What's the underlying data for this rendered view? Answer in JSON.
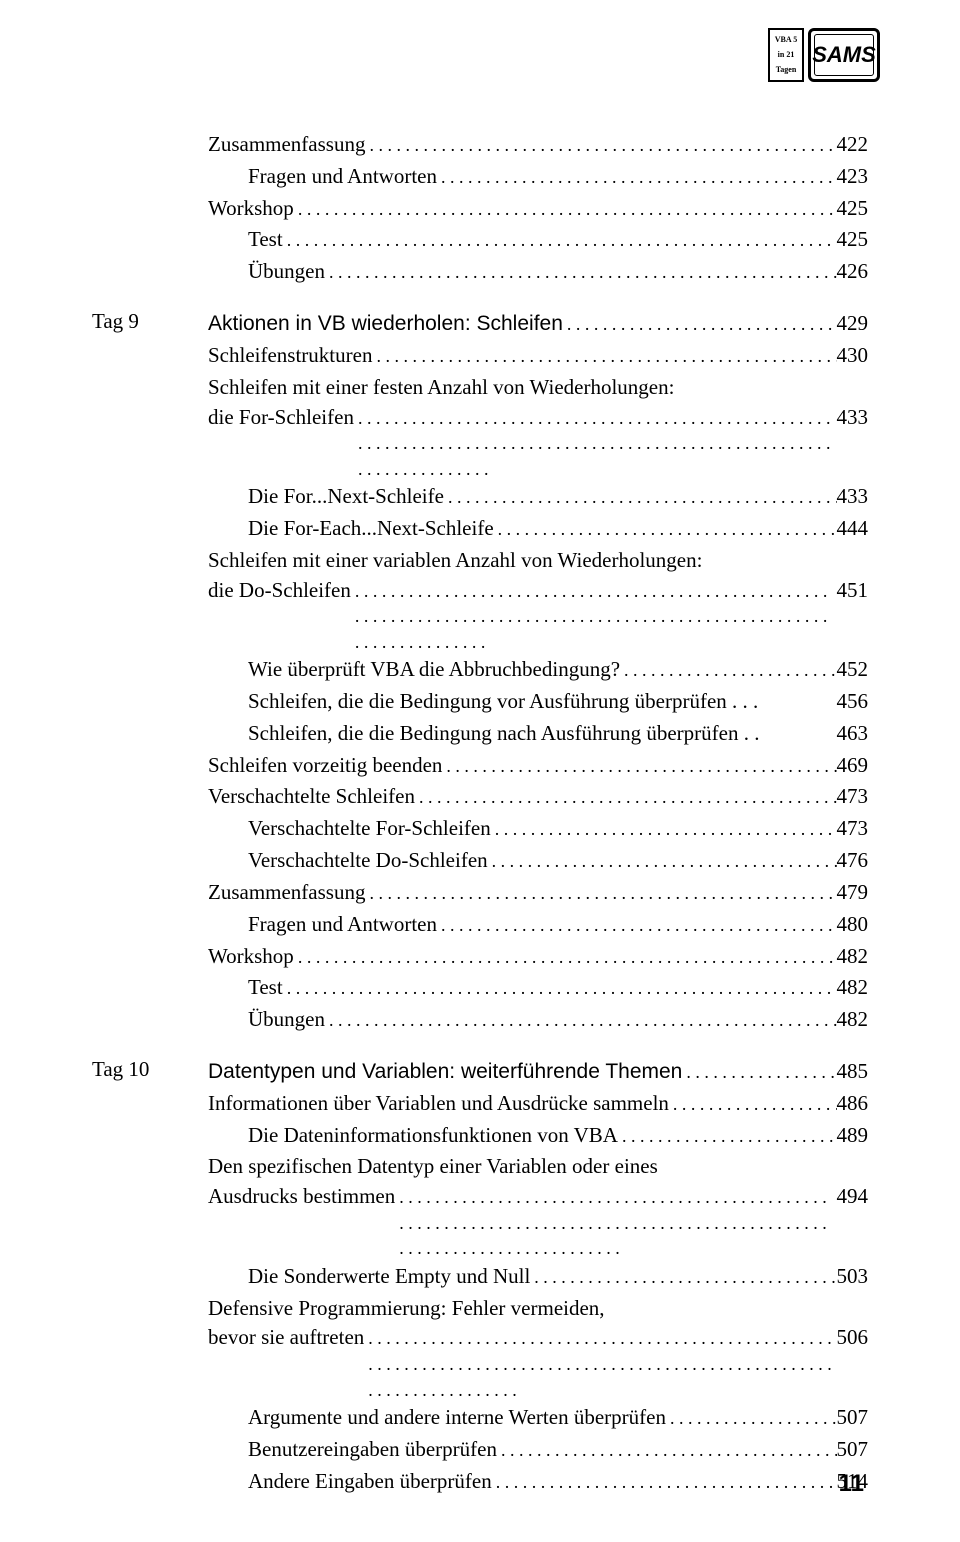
{
  "logo": {
    "left_lines": [
      "VBA 5",
      "in 21",
      "Tagen"
    ],
    "right_text": "SAMS"
  },
  "sections": [
    {
      "tag": "",
      "lines": [
        {
          "indent": 0,
          "label": "Zusammenfassung",
          "page": "422"
        },
        {
          "indent": 1,
          "label": "Fragen und Antworten",
          "page": "423"
        },
        {
          "indent": 0,
          "label": "Workshop",
          "page": "425"
        },
        {
          "indent": 1,
          "label": "Test",
          "page": "425"
        },
        {
          "indent": 1,
          "label": "Übungen",
          "page": "426"
        }
      ]
    },
    {
      "tag": "Tag 9",
      "title": {
        "indent": 0,
        "label": "Aktionen in VB wiederholen: Schleifen",
        "page": "429",
        "style": "section-title"
      },
      "lines": [
        {
          "indent": 0,
          "label": "Schleifenstrukturen",
          "page": "430"
        },
        {
          "indent": 0,
          "multiline": [
            "Schleifen mit einer festen Anzahl von Wiederholungen:",
            "die For-Schleifen"
          ],
          "page": "433"
        },
        {
          "indent": 1,
          "label": "Die For...Next-Schleife",
          "page": "433"
        },
        {
          "indent": 1,
          "label": "Die For-Each...Next-Schleife",
          "page": "444"
        },
        {
          "indent": 0,
          "multiline": [
            "Schleifen mit einer variablen Anzahl von Wiederholungen:",
            "die Do-Schleifen"
          ],
          "page": "451"
        },
        {
          "indent": 1,
          "label": "Wie überprüft VBA die Abbruchbedingung?",
          "page": "452"
        },
        {
          "indent": 1,
          "label": "Schleifen, die die Bedingung vor Ausführung überprüfen . . .",
          "page": "456",
          "nodots": true
        },
        {
          "indent": 1,
          "label": "Schleifen, die die Bedingung nach Ausführung überprüfen . .",
          "page": "463",
          "nodots": true
        },
        {
          "indent": 0,
          "label": "Schleifen vorzeitig beenden",
          "page": "469"
        },
        {
          "indent": 0,
          "label": "Verschachtelte Schleifen",
          "page": "473"
        },
        {
          "indent": 1,
          "label": "Verschachtelte For-Schleifen",
          "page": "473"
        },
        {
          "indent": 1,
          "label": "Verschachtelte Do-Schleifen",
          "page": "476"
        },
        {
          "indent": 0,
          "label": "Zusammenfassung",
          "page": "479"
        },
        {
          "indent": 1,
          "label": "Fragen und Antworten",
          "page": "480"
        },
        {
          "indent": 0,
          "label": "Workshop",
          "page": "482"
        },
        {
          "indent": 1,
          "label": "Test",
          "page": "482"
        },
        {
          "indent": 1,
          "label": "Übungen",
          "page": "482"
        }
      ]
    },
    {
      "tag": "Tag 10",
      "title": {
        "indent": 0,
        "label": "Datentypen und Variablen: weiterführende Themen",
        "page": "485",
        "style": "section-title"
      },
      "lines": [
        {
          "indent": 0,
          "label": "Informationen über Variablen und Ausdrücke sammeln",
          "page": "486"
        },
        {
          "indent": 1,
          "label": "Die Dateninformationsfunktionen von VBA",
          "page": "489"
        },
        {
          "indent": 1,
          "multiline": [
            "Den spezifischen Datentyp einer Variablen oder eines",
            "Ausdrucks bestimmen"
          ],
          "page": "494",
          "multiIndent": 0
        },
        {
          "indent": 1,
          "label": "Die Sonderwerte Empty und Null",
          "page": "503"
        },
        {
          "indent": 0,
          "multiline": [
            "Defensive Programmierung: Fehler vermeiden,",
            "bevor sie auftreten"
          ],
          "page": "506"
        },
        {
          "indent": 1,
          "label": "Argumente und andere interne Werten überprüfen",
          "page": "507"
        },
        {
          "indent": 1,
          "label": "Benutzereingaben überprüfen",
          "page": "507"
        },
        {
          "indent": 1,
          "label": "Andere Eingaben überprüfen",
          "page": "514"
        }
      ]
    }
  ],
  "page_number": "11"
}
